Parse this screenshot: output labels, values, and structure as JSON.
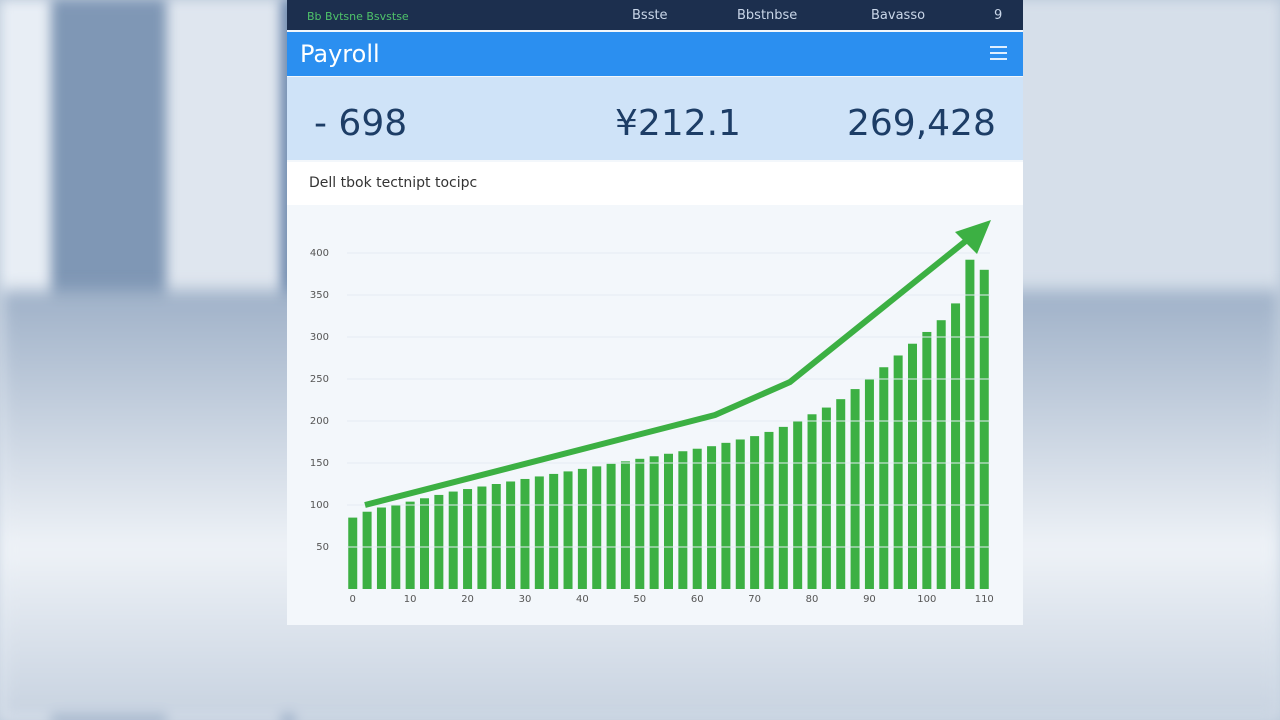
{
  "nav": {
    "brand": "Bb Bvtsne Bsvstse",
    "items": [
      "Bsste",
      "Bbstnbse",
      "Bavasso",
      "9"
    ]
  },
  "header": {
    "title": "Payroll"
  },
  "stats": [
    "- 698",
    "¥212.1",
    "269,428"
  ],
  "subtitle": "Dell tbok tectnipt tocipc",
  "chart_data": {
    "type": "bar",
    "color": "#3cb043",
    "grid": true,
    "x": [
      0,
      2.5,
      5,
      7.5,
      10,
      12.5,
      15,
      17.5,
      20,
      22.5,
      25,
      27.5,
      30,
      32.5,
      35,
      37.5,
      40,
      42.5,
      45,
      47.5,
      50,
      52.5,
      55,
      57.5,
      60,
      62.5,
      65,
      67.5,
      70,
      72.5,
      75,
      77.5,
      80,
      82.5,
      85,
      87.5,
      90,
      92.5,
      95,
      97.5,
      100,
      102.5,
      105,
      107.5,
      110
    ],
    "values": [
      85,
      92,
      97,
      100,
      104,
      108,
      112,
      116,
      119,
      122,
      125,
      128,
      131,
      134,
      137,
      140,
      143,
      146,
      149,
      152,
      155,
      158,
      161,
      164,
      167,
      170,
      174,
      178,
      182,
      187,
      193,
      200,
      208,
      216,
      226,
      238,
      250,
      264,
      278,
      292,
      306,
      320,
      340,
      392,
      380
    ],
    "xlim": [
      -1,
      111
    ],
    "xticks": [
      0,
      10,
      20,
      30,
      40,
      50,
      60,
      70,
      80,
      90,
      100,
      110
    ],
    "ylim": [
      0,
      450
    ],
    "yticks": [
      50,
      100,
      150,
      200,
      250,
      300,
      350,
      400
    ]
  }
}
